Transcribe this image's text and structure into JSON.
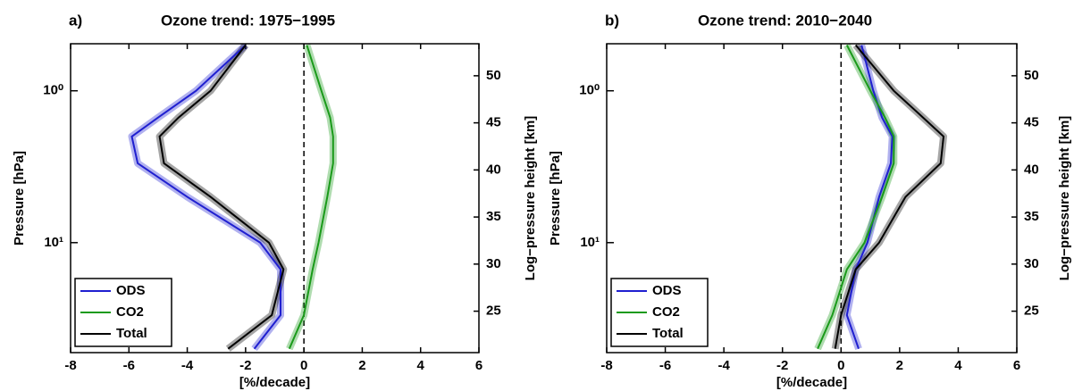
{
  "chart_data": [
    {
      "type": "line",
      "panel_label": "a)",
      "title": "Ozone trend: 1975−1995",
      "xlabel": "[%/decade]",
      "ylabel": "Pressure [hPa]",
      "y2label": "Log−pressure height [km]",
      "xlim": [
        -8,
        6
      ],
      "xticks": [
        -8,
        -6,
        -4,
        -2,
        0,
        2,
        4,
        6
      ],
      "ylim": [
        0.49,
        53
      ],
      "yscale": "log",
      "y_inverted": true,
      "yticks": [
        {
          "value": 1,
          "label": "10⁰"
        },
        {
          "value": 10,
          "label": "10¹"
        }
      ],
      "y2lim": [
        20.6,
        53.4
      ],
      "y2ticks": [
        25,
        30,
        35,
        40,
        45,
        50
      ],
      "zero_line": 0,
      "legend": "lower left",
      "y": [
        0.5,
        1,
        1.5,
        2,
        3,
        5,
        10,
        15,
        30,
        50
      ],
      "series": [
        {
          "name": "ODS",
          "color": "#1f1fd0",
          "values": [
            -2.0,
            -3.7,
            -5.0,
            -5.9,
            -5.7,
            -4.0,
            -1.5,
            -0.8,
            -0.8,
            -1.7
          ]
        },
        {
          "name": "CO2",
          "color": "#1a9a1a",
          "values": [
            0.1,
            0.6,
            0.9,
            1.0,
            1.0,
            0.8,
            0.5,
            0.3,
            0.0,
            -0.5
          ]
        },
        {
          "name": "Total",
          "color": "#000000",
          "values": [
            -2.0,
            -3.2,
            -4.3,
            -4.95,
            -4.8,
            -3.2,
            -1.2,
            -0.7,
            -1.1,
            -2.6
          ]
        }
      ]
    },
    {
      "type": "line",
      "panel_label": "b)",
      "title": "Ozone trend: 2010−2040",
      "xlabel": "[%/decade]",
      "ylabel": "Pressure [hPa]",
      "y2label": "Log−pressure height [km]",
      "xlim": [
        -8,
        6
      ],
      "xticks": [
        -8,
        -6,
        -4,
        -2,
        0,
        2,
        4,
        6
      ],
      "ylim": [
        0.49,
        53
      ],
      "yscale": "log",
      "y_inverted": true,
      "yticks": [
        {
          "value": 1,
          "label": "10⁰"
        },
        {
          "value": 10,
          "label": "10¹"
        }
      ],
      "y2lim": [
        20.6,
        53.4
      ],
      "y2ticks": [
        25,
        30,
        35,
        40,
        45,
        50
      ],
      "zero_line": 0,
      "legend": "lower left",
      "y": [
        0.5,
        1,
        1.5,
        2,
        3,
        5,
        10,
        15,
        30,
        50
      ],
      "series": [
        {
          "name": "ODS",
          "color": "#1f1fd0",
          "values": [
            0.7,
            1.1,
            1.4,
            1.75,
            1.7,
            1.3,
            0.9,
            0.5,
            0.2,
            0.6
          ]
        },
        {
          "name": "CO2",
          "color": "#1a9a1a",
          "values": [
            0.2,
            1.0,
            1.5,
            1.8,
            1.8,
            1.4,
            0.8,
            0.2,
            -0.3,
            -0.8
          ]
        },
        {
          "name": "Total",
          "color": "#000000",
          "values": [
            0.5,
            1.8,
            2.8,
            3.5,
            3.4,
            2.2,
            1.3,
            0.5,
            0.0,
            -0.2
          ]
        }
      ]
    }
  ]
}
